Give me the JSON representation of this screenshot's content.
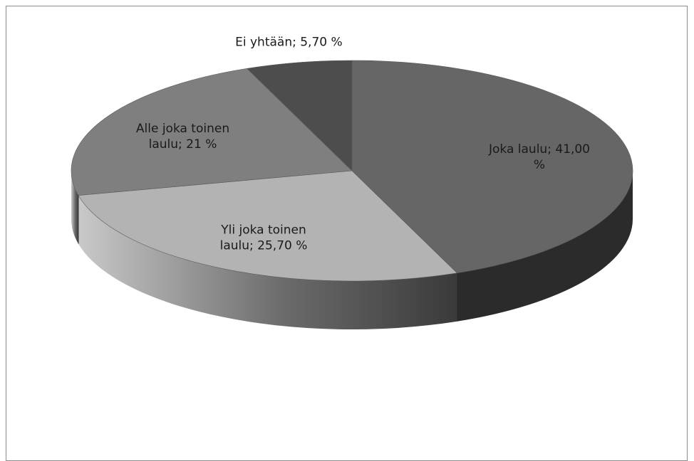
{
  "chart_data": {
    "type": "pie",
    "variant": "3d",
    "title": "",
    "slices": [
      {
        "name": "Joka laulu",
        "value": 41.0,
        "label_lines": [
          "Joka laulu; 41,00",
          "%"
        ],
        "color": "#666666",
        "side_color": "#2b2b2b"
      },
      {
        "name": "Yli joka toinen laulu",
        "value": 25.7,
        "label_lines": [
          "Yli joka toinen",
          "laulu; 25,70 %"
        ],
        "color": "#b3b3b3",
        "side_color": "#8a8a8a"
      },
      {
        "name": "Alle joka toinen laulu",
        "value": 21.0,
        "label_lines": [
          "Alle joka toinen",
          "laulu; 21 %"
        ],
        "color": "#7f7f7f",
        "side_color": "#6a6a6a"
      },
      {
        "name": "Ei yhtään",
        "value": 5.7,
        "label_lines": [
          "Ei yhtään; 5,70 %"
        ],
        "color": "#4d4d4d",
        "side_color": "#3a3a3a"
      }
    ],
    "legend": "none",
    "start_angle_deg": 0,
    "direction": "clockwise"
  }
}
